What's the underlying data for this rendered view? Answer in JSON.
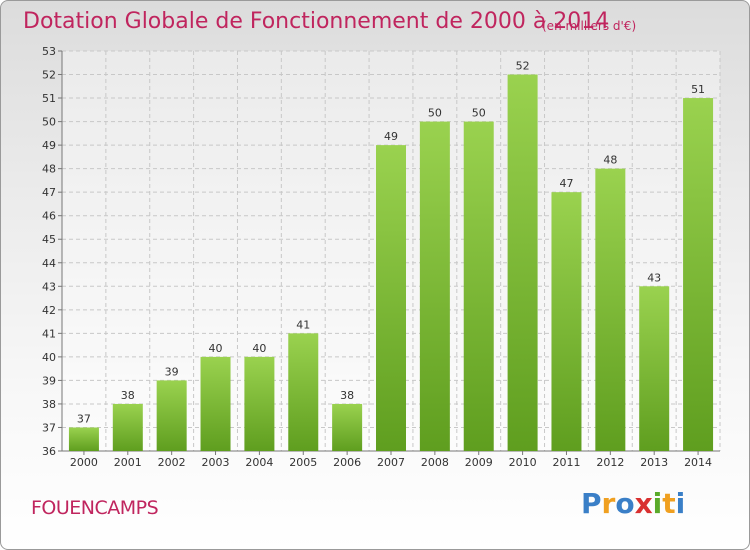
{
  "header": {
    "title": "Dotation Globale de Fonctionnement de 2000 à 2014",
    "subtitle": "(en milliers d'€)"
  },
  "footer": {
    "commune": "FOUENCAMPS",
    "logo": {
      "letters": [
        "P",
        "r",
        "o",
        "x",
        "i",
        "t",
        "i"
      ],
      "colors": [
        "#3a7fc7",
        "#f0a020",
        "#3a7fc7",
        "#d93030",
        "#5aaa2a",
        "#f0a020",
        "#3a7fc7"
      ]
    }
  },
  "chart_data": {
    "type": "bar",
    "categories": [
      "2000",
      "2001",
      "2002",
      "2003",
      "2004",
      "2005",
      "2006",
      "2007",
      "2008",
      "2009",
      "2010",
      "2011",
      "2012",
      "2013",
      "2014"
    ],
    "values": [
      37,
      38,
      39,
      40,
      40,
      41,
      38,
      49,
      50,
      50,
      52,
      47,
      48,
      43,
      51
    ],
    "ylim": [
      36,
      53
    ],
    "yticks": [
      36,
      37,
      38,
      39,
      40,
      41,
      42,
      43,
      44,
      45,
      46,
      47,
      48,
      49,
      50,
      51,
      52,
      53
    ],
    "grid": true,
    "bar_color": "#7dc03a",
    "legend": "none"
  }
}
